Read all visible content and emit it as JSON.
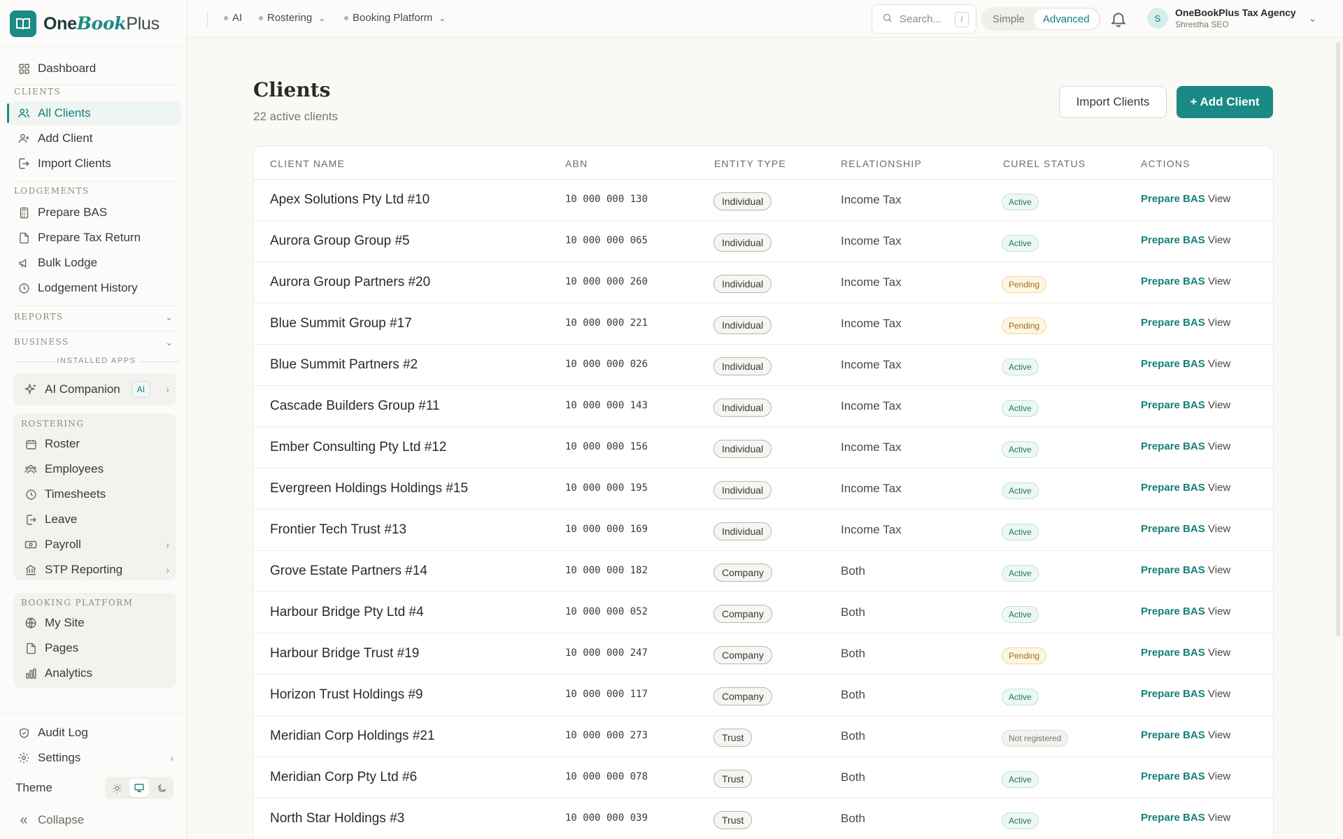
{
  "brand": {
    "one": "One",
    "book": "Book",
    "plus": "Plus"
  },
  "sidebar": {
    "dashboard": "Dashboard",
    "clients_label": "Clients",
    "all_clients": "All Clients",
    "add_client": "Add Client",
    "import_clients": "Import Clients",
    "lodgements_label": "Lodgements",
    "prepare_bas": "Prepare BAS",
    "prepare_tax_return": "Prepare Tax Return",
    "bulk_lodge": "Bulk Lodge",
    "lodgement_history": "Lodgement History",
    "reports_label": "Reports",
    "business_label": "Business",
    "installed_apps": "INSTALLED APPS",
    "ai_companion": "AI Companion",
    "ai_badge": "AI",
    "rostering_label": "Rostering",
    "roster": "Roster",
    "employees": "Employees",
    "timesheets": "Timesheets",
    "leave": "Leave",
    "payroll": "Payroll",
    "stp_reporting": "STP Reporting",
    "booking_label": "Booking Platform",
    "my_site": "My Site",
    "pages": "Pages",
    "analytics": "Analytics",
    "audit_log": "Audit Log",
    "settings": "Settings",
    "theme": "Theme",
    "collapse": "Collapse"
  },
  "topbar": {
    "ai": "AI",
    "rostering": "Rostering",
    "booking": "Booking Platform",
    "search_placeholder": "Search...",
    "search_kbd": "/",
    "mode_simple": "Simple",
    "mode_advanced": "Advanced",
    "avatar_initial": "S",
    "org_name": "OneBookPlus Tax Agency",
    "user_name": "Shrestha SEO"
  },
  "main": {
    "title": "Clients",
    "subtitle": "22 active clients",
    "import_button": "Import Clients",
    "add_button": "+ Add Client"
  },
  "table": {
    "headers": {
      "name": "Client Name",
      "abn": "ABN",
      "entity": "Entity Type",
      "relationship": "Relationship",
      "status": "Curel Status",
      "actions": "Actions"
    },
    "prepare_label": "Prepare BAS",
    "view_label": "View",
    "rows": [
      {
        "name": "Apex Solutions Pty Ltd #10",
        "abn": "10 000 000 130",
        "entity": "Individual",
        "relationship": "Income Tax",
        "status": "Active"
      },
      {
        "name": "Aurora Group Group #5",
        "abn": "10 000 000 065",
        "entity": "Individual",
        "relationship": "Income Tax",
        "status": "Active"
      },
      {
        "name": "Aurora Group Partners #20",
        "abn": "10 000 000 260",
        "entity": "Individual",
        "relationship": "Income Tax",
        "status": "Pending"
      },
      {
        "name": "Blue Summit Group #17",
        "abn": "10 000 000 221",
        "entity": "Individual",
        "relationship": "Income Tax",
        "status": "Pending"
      },
      {
        "name": "Blue Summit Partners #2",
        "abn": "10 000 000 026",
        "entity": "Individual",
        "relationship": "Income Tax",
        "status": "Active"
      },
      {
        "name": "Cascade Builders Group #11",
        "abn": "10 000 000 143",
        "entity": "Individual",
        "relationship": "Income Tax",
        "status": "Active"
      },
      {
        "name": "Ember Consulting Pty Ltd #12",
        "abn": "10 000 000 156",
        "entity": "Individual",
        "relationship": "Income Tax",
        "status": "Active"
      },
      {
        "name": "Evergreen Holdings Holdings #15",
        "abn": "10 000 000 195",
        "entity": "Individual",
        "relationship": "Income Tax",
        "status": "Active"
      },
      {
        "name": "Frontier Tech Trust #13",
        "abn": "10 000 000 169",
        "entity": "Individual",
        "relationship": "Income Tax",
        "status": "Active"
      },
      {
        "name": "Grove Estate Partners #14",
        "abn": "10 000 000 182",
        "entity": "Company",
        "relationship": "Both",
        "status": "Active"
      },
      {
        "name": "Harbour Bridge Pty Ltd #4",
        "abn": "10 000 000 052",
        "entity": "Company",
        "relationship": "Both",
        "status": "Active"
      },
      {
        "name": "Harbour Bridge Trust #19",
        "abn": "10 000 000 247",
        "entity": "Company",
        "relationship": "Both",
        "status": "Pending"
      },
      {
        "name": "Horizon Trust Holdings #9",
        "abn": "10 000 000 117",
        "entity": "Company",
        "relationship": "Both",
        "status": "Active"
      },
      {
        "name": "Meridian Corp Holdings #21",
        "abn": "10 000 000 273",
        "entity": "Trust",
        "relationship": "Both",
        "status": "Not registered"
      },
      {
        "name": "Meridian Corp Pty Ltd #6",
        "abn": "10 000 000 078",
        "entity": "Trust",
        "relationship": "Both",
        "status": "Active"
      },
      {
        "name": "North Star Holdings #3",
        "abn": "10 000 000 039",
        "entity": "Trust",
        "relationship": "Both",
        "status": "Active"
      }
    ]
  },
  "colors": {
    "accent": "#1a8b84",
    "active": "#1f7a55",
    "pending": "#9a6d12"
  }
}
